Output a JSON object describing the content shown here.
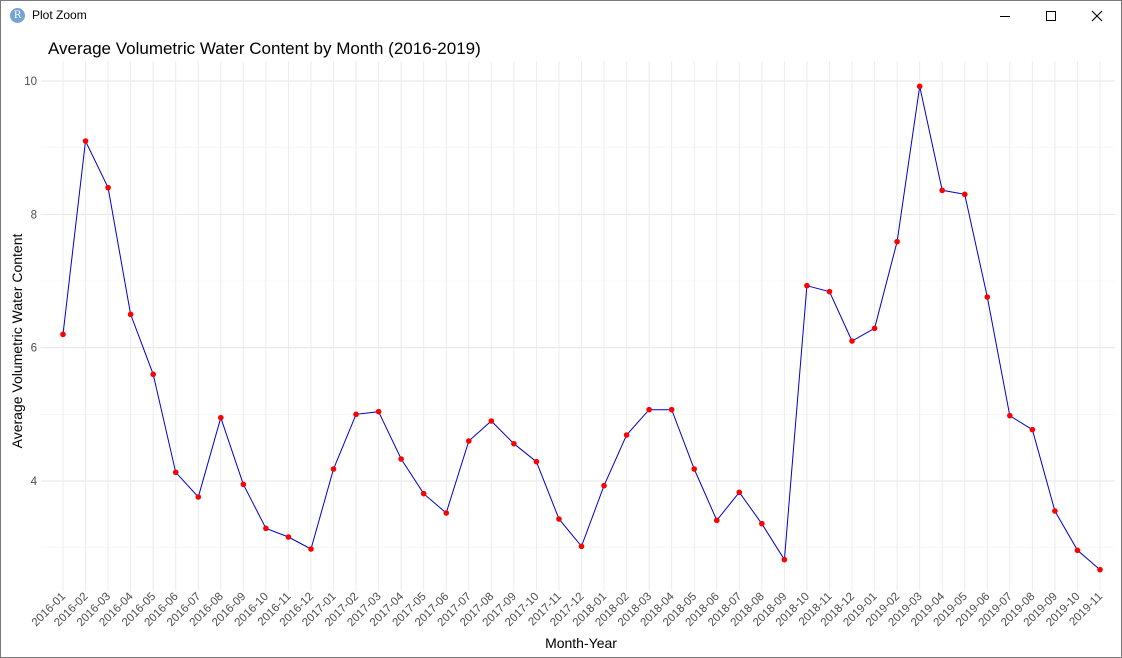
{
  "window": {
    "title": "Plot Zoom",
    "icon": "r-logo-icon",
    "icon_letter": "R",
    "buttons": [
      "minimize-icon",
      "maximize-icon",
      "close-icon"
    ]
  },
  "chart_data": {
    "type": "line",
    "title": "Average Volumetric Water Content by Month (2016-2019)",
    "xlabel": "Month-Year",
    "ylabel": "Average Volumetric Water Content",
    "ylim": [
      2.35,
      10.3
    ],
    "yticks": [
      4,
      6,
      8,
      10
    ],
    "grid": true,
    "line_color": "#0000cc",
    "point_color": "#ff0000",
    "categories": [
      "2016-01",
      "2016-02",
      "2016-03",
      "2016-04",
      "2016-05",
      "2016-06",
      "2016-07",
      "2016-08",
      "2016-09",
      "2016-10",
      "2016-11",
      "2016-12",
      "2017-01",
      "2017-02",
      "2017-03",
      "2017-04",
      "2017-05",
      "2017-06",
      "2017-07",
      "2017-08",
      "2017-09",
      "2017-10",
      "2017-11",
      "2017-12",
      "2018-01",
      "2018-02",
      "2018-03",
      "2018-04",
      "2018-05",
      "2018-06",
      "2018-07",
      "2018-08",
      "2018-09",
      "2018-10",
      "2018-11",
      "2018-12",
      "2019-01",
      "2019-02",
      "2019-03",
      "2019-04",
      "2019-05",
      "2019-06",
      "2019-07",
      "2019-08",
      "2019-09",
      "2019-10",
      "2019-11"
    ],
    "series": [
      {
        "values": [
          6.2,
          9.1,
          8.4,
          6.5,
          5.6,
          4.13,
          3.76,
          4.95,
          3.95,
          3.29,
          3.16,
          2.98,
          4.18,
          5.0,
          5.04,
          4.33,
          3.81,
          3.52,
          4.6,
          4.9,
          4.56,
          4.29,
          3.43,
          3.02,
          3.93,
          4.69,
          5.07,
          5.07,
          4.18,
          3.41,
          3.83,
          3.36,
          2.82,
          6.93,
          6.84,
          6.1,
          6.29,
          7.59,
          9.92,
          8.36,
          8.3,
          6.76,
          4.98,
          4.77,
          3.55,
          2.96,
          2.67
        ]
      }
    ]
  }
}
